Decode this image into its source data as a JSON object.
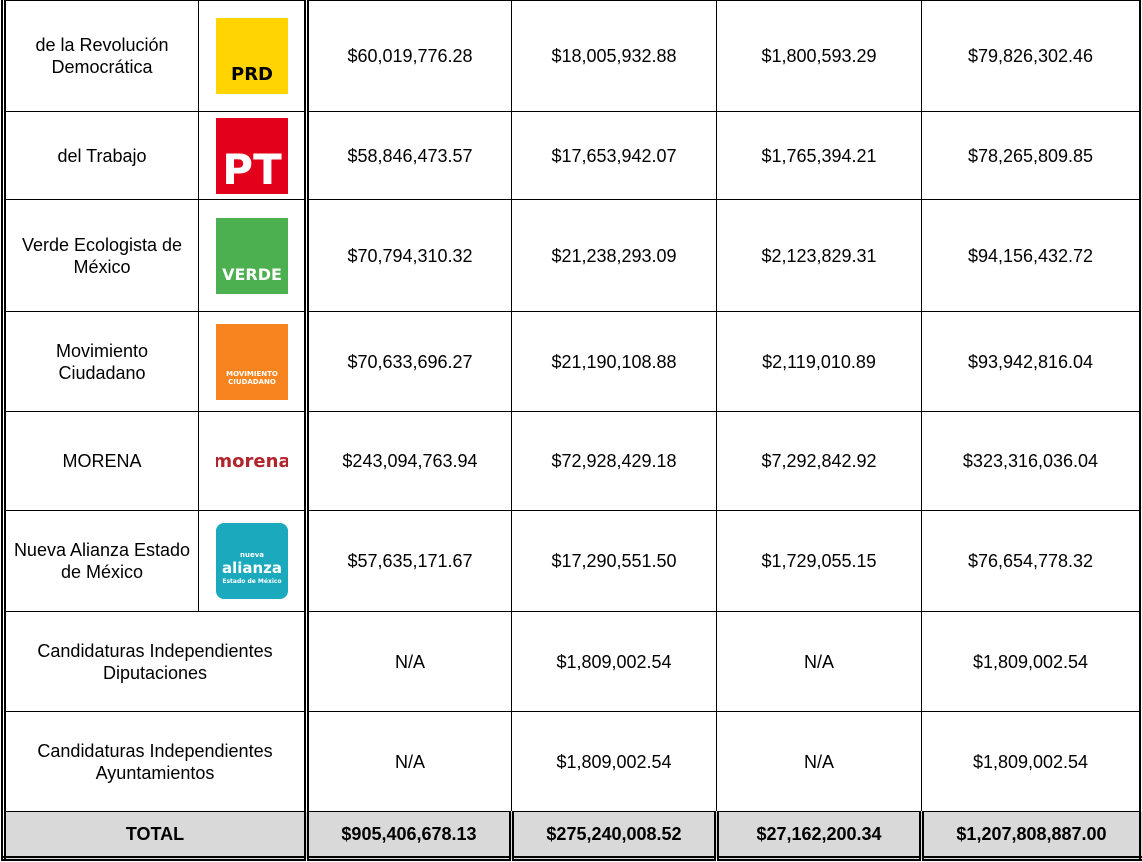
{
  "table": {
    "rows": [
      {
        "name": "de la Revolución Democrática",
        "logo": {
          "text": [
            "PRD"
          ],
          "bg": "#ffd400",
          "fg": "#000000"
        },
        "cells": [
          "$60,019,776.28",
          "$18,005,932.88",
          "$1,800,593.29",
          "$79,826,302.46"
        ]
      },
      {
        "name": "del Trabajo",
        "logo": {
          "text": [
            "PT"
          ],
          "bg": "#e2001a",
          "fg": "#ffffff"
        },
        "cells": [
          "$58,846,473.57",
          "$17,653,942.07",
          "$1,765,394.21",
          "$78,265,809.85"
        ]
      },
      {
        "name": "Verde Ecologista de México",
        "logo": {
          "text": [
            "VERDE"
          ],
          "bg": "#4caf50",
          "fg": "#ffffff"
        },
        "cells": [
          "$70,794,310.32",
          "$21,238,293.09",
          "$2,123,829.31",
          "$94,156,432.72"
        ]
      },
      {
        "name": "Movimiento Ciudadano",
        "logo": {
          "text": [
            "MOVIMIENTO",
            "CIUDADANO"
          ],
          "bg": "#f7841f",
          "fg": "#ffffff"
        },
        "cells": [
          "$70,633,696.27",
          "$21,190,108.88",
          "$2,119,010.89",
          "$93,942,816.04"
        ]
      },
      {
        "name": "MORENA",
        "logo": {
          "text": [
            "morena"
          ],
          "bg": null,
          "fg": "#b0252b"
        },
        "cells": [
          "$243,094,763.94",
          "$72,928,429.18",
          "$7,292,842.92",
          "$323,316,036.04"
        ]
      },
      {
        "name": "Nueva Alianza Estado de México",
        "logo": {
          "text": [
            "nueva",
            "alianza",
            "Estado de México"
          ],
          "bg": "#1aa9bd",
          "fg": "#ffffff"
        },
        "cells": [
          "$57,635,171.67",
          "$17,290,551.50",
          "$1,729,055.15",
          "$76,654,778.32"
        ]
      },
      {
        "name": "Candidaturas Independientes Diputaciones",
        "cells": [
          "N/A",
          "$1,809,002.54",
          "N/A",
          "$1,809,002.54"
        ]
      },
      {
        "name": "Candidaturas Independientes Ayuntamientos",
        "cells": [
          "N/A",
          "$1,809,002.54",
          "N/A",
          "$1,809,002.54"
        ]
      }
    ],
    "total": {
      "label": "TOTAL",
      "cells": [
        "$905,406,678.13",
        "$275,240,008.52",
        "$27,162,200.34",
        "$1,207,808,887.00"
      ]
    }
  }
}
